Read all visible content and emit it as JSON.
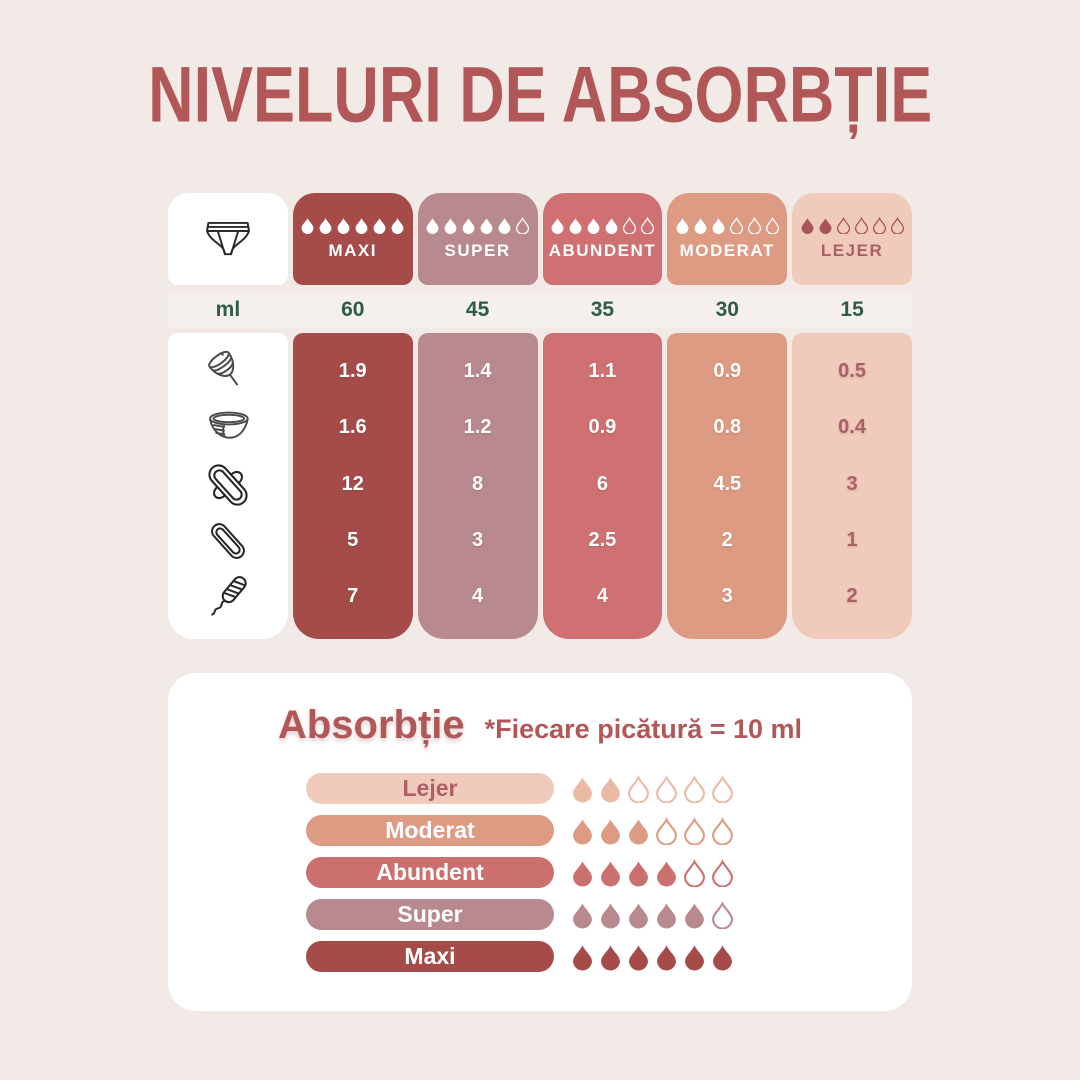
{
  "page": {
    "title": "NIVELURI DE ABSORBȚIE",
    "background_color": "#f1eae6",
    "title_color": "#b25757",
    "band_color": "#f5f0ed",
    "unit_text_color": "#2e5c4b",
    "icon_stroke_color": "#2f2f2f"
  },
  "chart_data": {
    "type": "table",
    "title": "NIVELURI DE ABSORBȚIE",
    "unit_label": "ml",
    "row_products": [
      "menstrual-cup",
      "menstrual-disc",
      "sanitary-pad",
      "pantyliner",
      "tampon"
    ],
    "columns": [
      {
        "label": "MAXI",
        "ml": 60,
        "droplets_filled": 6,
        "droplets_total": 6,
        "color": "#a54c4b",
        "text_color": "#ffffff",
        "values": [
          1.9,
          1.6,
          12,
          5,
          7
        ]
      },
      {
        "label": "SUPER",
        "ml": 45,
        "droplets_filled": 5,
        "droplets_total": 6,
        "color": "#b8898e",
        "text_color": "#ffffff",
        "values": [
          1.4,
          1.2,
          8,
          3,
          4
        ]
      },
      {
        "label": "ABUNDENT",
        "ml": 35,
        "droplets_filled": 4,
        "droplets_total": 6,
        "color": "#cf7172",
        "text_color": "#ffffff",
        "values": [
          1.1,
          0.9,
          6,
          2.5,
          4
        ]
      },
      {
        "label": "MODERAT",
        "ml": 30,
        "droplets_filled": 3,
        "droplets_total": 6,
        "color": "#de9b83",
        "text_color": "#ffffff",
        "values": [
          0.9,
          0.8,
          4.5,
          2,
          3
        ]
      },
      {
        "label": "LEJER",
        "ml": 15,
        "droplets_filled": 2,
        "droplets_total": 6,
        "color": "#f0cabb",
        "text_color": "#ad5f68",
        "values": [
          0.5,
          0.4,
          3,
          1,
          2
        ]
      }
    ],
    "legend": {
      "title": "Absorbție",
      "note": "*Fiecare picătură = 10 ml",
      "items": [
        {
          "label": "Lejer",
          "droplets_filled": 2,
          "droplets_total": 6,
          "color": "#f0cabb",
          "text_color": "#ad5f68"
        },
        {
          "label": "Moderat",
          "droplets_filled": 3,
          "droplets_total": 6,
          "color": "#de9b83",
          "text_color": "#ffffff"
        },
        {
          "label": "Abundent",
          "droplets_filled": 4,
          "droplets_total": 6,
          "color": "#cc6f6f",
          "text_color": "#ffffff"
        },
        {
          "label": "Super",
          "droplets_filled": 5,
          "droplets_total": 6,
          "color": "#b8898e",
          "text_color": "#ffffff"
        },
        {
          "label": "Maxi",
          "droplets_filled": 6,
          "droplets_total": 6,
          "color": "#a54c4b",
          "text_color": "#ffffff"
        }
      ]
    }
  }
}
